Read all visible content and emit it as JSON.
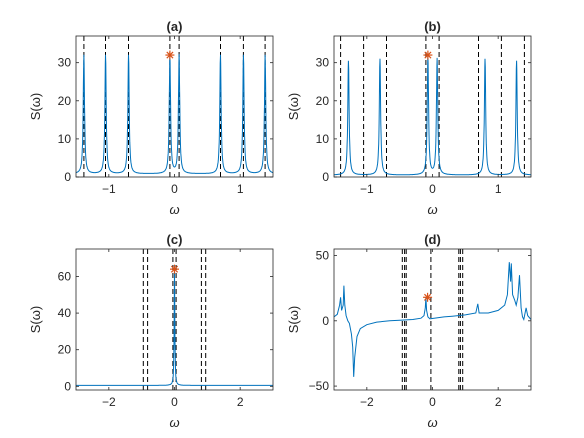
{
  "colors": {
    "line": "#0072BD",
    "marker": "#D95319",
    "dashed": "#000000",
    "axis": "#262626"
  },
  "chart_data": [
    {
      "type": "line",
      "title": "(a)",
      "xlabel": "ω",
      "ylabel": "S(ω)",
      "xlim": [
        -1.5,
        1.5
      ],
      "ylim": [
        0,
        37
      ],
      "xticks": [
        -1,
        0,
        1
      ],
      "yticks": [
        0,
        10,
        20,
        30
      ],
      "grid": false,
      "dashed_lines": [
        -1.38,
        -1.05,
        -0.7,
        -0.07,
        0.07,
        0.7,
        1.05,
        1.38
      ],
      "peaks": [
        {
          "x": -1.38,
          "y": 32
        },
        {
          "x": -1.05,
          "y": 32
        },
        {
          "x": -0.7,
          "y": 32
        },
        {
          "x": -0.07,
          "y": 32
        },
        {
          "x": 0.07,
          "y": 32
        },
        {
          "x": 0.7,
          "y": 32
        },
        {
          "x": 1.05,
          "y": 32
        },
        {
          "x": 1.38,
          "y": 32
        }
      ],
      "baseline": 0.8,
      "marker": {
        "x": -0.07,
        "y": 32
      }
    },
    {
      "type": "line",
      "title": "(b)",
      "xlabel": "ω",
      "ylabel": "S(ω)",
      "xlim": [
        -1.5,
        1.5
      ],
      "ylim": [
        0,
        37
      ],
      "xticks": [
        -1,
        0,
        1
      ],
      "yticks": [
        0,
        10,
        20,
        30
      ],
      "grid": false,
      "dashed_lines": [
        -1.4,
        -1.05,
        -0.7,
        -0.1,
        0.1,
        0.7,
        1.05,
        1.4
      ],
      "peaks": [
        {
          "x": -1.28,
          "y": 30.5
        },
        {
          "x": -0.8,
          "y": 31
        },
        {
          "x": -0.07,
          "y": 32
        },
        {
          "x": 0.07,
          "y": 31
        },
        {
          "x": 0.8,
          "y": 31
        },
        {
          "x": 1.28,
          "y": 30.5
        }
      ],
      "baseline": 0.5,
      "marker": {
        "x": -0.07,
        "y": 32
      }
    },
    {
      "type": "line",
      "title": "(c)",
      "xlabel": "ω",
      "ylabel": "S(ω)",
      "xlim": [
        -3,
        3
      ],
      "ylim": [
        -2,
        75
      ],
      "xticks": [
        -2,
        0,
        2
      ],
      "yticks": [
        0,
        20,
        40,
        60
      ],
      "grid": false,
      "dashed_lines": [
        -0.95,
        -0.82,
        -0.05,
        0.05,
        0.82,
        0.95
      ],
      "peaks": [
        {
          "x": 0,
          "y": 64
        }
      ],
      "baseline": 0.5,
      "marker": {
        "x": 0,
        "y": 64
      }
    },
    {
      "type": "line",
      "title": "(d)",
      "xlabel": "ω",
      "ylabel": "S(ω)",
      "xlim": [
        -3,
        3
      ],
      "ylim": [
        -53,
        55
      ],
      "xticks": [
        -2,
        0,
        2
      ],
      "yticks": [
        -50,
        0,
        50
      ],
      "grid": false,
      "dashed_lines": [
        -0.92,
        -0.85,
        -0.8,
        -0.05,
        0.8,
        0.85,
        0.92
      ],
      "marker": {
        "x": -0.15,
        "y": 18
      },
      "points": [
        [
          -3,
          3
        ],
        [
          -2.9,
          5
        ],
        [
          -2.83,
          12
        ],
        [
          -2.8,
          18
        ],
        [
          -2.77,
          8
        ],
        [
          -2.72,
          12
        ],
        [
          -2.7,
          27
        ],
        [
          -2.67,
          12
        ],
        [
          -2.63,
          4
        ],
        [
          -2.58,
          0
        ],
        [
          -2.53,
          -2
        ],
        [
          -2.47,
          -10
        ],
        [
          -2.43,
          -20
        ],
        [
          -2.4,
          -43
        ],
        [
          -2.37,
          -28
        ],
        [
          -2.3,
          -12
        ],
        [
          -2.2,
          -6
        ],
        [
          -2.0,
          -3
        ],
        [
          -1.7,
          -1
        ],
        [
          -1.3,
          0
        ],
        [
          -1.0,
          0.5
        ],
        [
          -0.6,
          1
        ],
        [
          -0.35,
          2
        ],
        [
          -0.26,
          4
        ],
        [
          -0.22,
          10
        ],
        [
          -0.2,
          18
        ],
        [
          -0.18,
          8
        ],
        [
          -0.14,
          3
        ],
        [
          -0.08,
          1.5
        ],
        [
          0.05,
          2
        ],
        [
          0.35,
          3
        ],
        [
          0.6,
          3.5
        ],
        [
          1.0,
          4.5
        ],
        [
          1.32,
          6
        ],
        [
          1.38,
          13
        ],
        [
          1.42,
          6
        ],
        [
          1.7,
          6
        ],
        [
          2.0,
          8
        ],
        [
          2.2,
          12
        ],
        [
          2.28,
          20
        ],
        [
          2.34,
          45
        ],
        [
          2.38,
          30
        ],
        [
          2.4,
          44
        ],
        [
          2.44,
          20
        ],
        [
          2.5,
          16
        ],
        [
          2.55,
          12
        ],
        [
          2.6,
          18
        ],
        [
          2.65,
          35
        ],
        [
          2.7,
          10
        ],
        [
          2.74,
          3
        ],
        [
          2.78,
          1
        ],
        [
          2.85,
          10
        ],
        [
          2.9,
          4
        ],
        [
          3,
          1
        ]
      ]
    }
  ]
}
